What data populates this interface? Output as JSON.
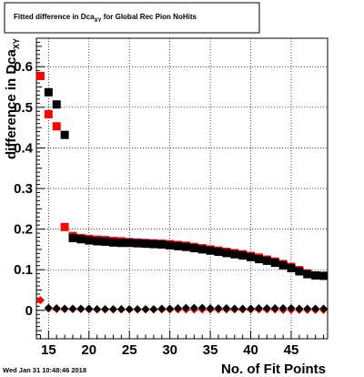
{
  "title": {
    "main": "Fitted difference in Dca",
    "sub": "XY",
    "rest": " for Global Rec Pion NoHits"
  },
  "datestamp": "Wed Jan 31 10:48:46 2018",
  "colors": {
    "series_black": "#000000",
    "series_red": "#ff0000",
    "grid": "#000000"
  },
  "chart_data": {
    "type": "scatter",
    "xlabel": "No. of Fit Points",
    "ylabel": {
      "main": "difference in Dca",
      "sub": "XY"
    },
    "xlim": [
      13.5,
      49.5
    ],
    "ylim": [
      -0.07,
      0.67
    ],
    "xticks": [
      15,
      20,
      25,
      30,
      35,
      40,
      45
    ],
    "yticks": [
      0,
      0.1,
      0.2,
      0.3,
      0.4,
      0.5,
      0.6
    ],
    "ytick_labels": [
      "0",
      "0.1",
      "0.2",
      "0.3",
      "0.4",
      "0.5",
      "0.6"
    ],
    "grid": true,
    "series": [
      {
        "marker": "square",
        "color": "#000000",
        "x": [
          15,
          16,
          17,
          18,
          19,
          20,
          21,
          22,
          23,
          24,
          25,
          26,
          27,
          28,
          29,
          30,
          31,
          32,
          33,
          34,
          35,
          36,
          37,
          38,
          39,
          40,
          41,
          42,
          43,
          44,
          45,
          46,
          47,
          48,
          49
        ],
        "y": [
          0.537,
          0.507,
          0.432,
          0.178,
          0.175,
          0.172,
          0.17,
          0.169,
          0.167,
          0.166,
          0.166,
          0.165,
          0.164,
          0.163,
          0.162,
          0.16,
          0.158,
          0.156,
          0.153,
          0.15,
          0.147,
          0.144,
          0.141,
          0.138,
          0.135,
          0.131,
          0.126,
          0.122,
          0.117,
          0.111,
          0.104,
          0.096,
          0.089,
          0.086,
          0.085
        ]
      },
      {
        "marker": "square",
        "color": "#ff0000",
        "x": [
          14,
          15,
          16,
          17,
          18,
          19,
          20,
          21,
          22,
          23,
          24,
          25,
          26,
          27,
          28,
          29,
          30,
          31,
          32,
          33,
          34,
          35,
          36,
          37,
          38,
          39,
          40,
          41,
          42,
          43,
          44,
          45,
          46,
          47,
          48,
          49
        ],
        "y": [
          0.577,
          0.483,
          0.453,
          0.205,
          0.183,
          0.178,
          0.176,
          0.174,
          0.173,
          0.171,
          0.17,
          0.168,
          0.167,
          0.166,
          0.165,
          0.164,
          0.163,
          0.161,
          0.159,
          0.156,
          0.153,
          0.15,
          0.147,
          0.144,
          0.141,
          0.138,
          0.134,
          0.13,
          0.125,
          0.12,
          0.114,
          0.107,
          0.099,
          0.091,
          0.086,
          0.085
        ]
      },
      {
        "marker": "diamond",
        "color": "#000000",
        "x": [
          15,
          16,
          17,
          18,
          19,
          20,
          21,
          22,
          23,
          24,
          25,
          26,
          27,
          28,
          29,
          30,
          31,
          32,
          33,
          34,
          35,
          36,
          37,
          38,
          39,
          40,
          41,
          42,
          43,
          44,
          45,
          46,
          47,
          48,
          49
        ],
        "y": [
          0.006,
          0.005,
          0.004,
          0.004,
          0.004,
          0.004,
          0.003,
          0.003,
          0.003,
          0.003,
          0.003,
          0.003,
          0.003,
          0.003,
          0.004,
          0.004,
          0.005,
          0.006,
          0.006,
          0.006,
          0.005,
          0.005,
          0.005,
          0.004,
          0.004,
          0.004,
          0.005,
          0.005,
          0.005,
          0.005,
          0.005,
          0.004,
          0.004,
          0.004,
          0.004
        ]
      },
      {
        "marker": "diamond",
        "color": "#ff0000",
        "x": [
          14,
          15,
          16,
          17,
          18,
          19,
          20,
          21,
          22,
          23,
          24,
          25,
          26,
          27,
          28,
          29,
          30,
          31,
          32,
          33,
          34,
          35,
          36,
          37,
          38,
          39,
          40,
          41,
          42,
          43,
          44,
          45,
          46,
          47,
          48,
          49
        ],
        "y": [
          0.025,
          0.004,
          0.003,
          0.003,
          0.003,
          0.003,
          0.002,
          0.002,
          0.002,
          0.002,
          0.002,
          0.002,
          0.002,
          0.002,
          0.002,
          0.002,
          0.002,
          0.002,
          0.002,
          0.002,
          0.002,
          0.002,
          0.002,
          0.002,
          0.002,
          0.002,
          0.002,
          0.002,
          0.002,
          0.002,
          0.001,
          0.001,
          0.001,
          0.001,
          0.001,
          0.001
        ]
      }
    ]
  }
}
